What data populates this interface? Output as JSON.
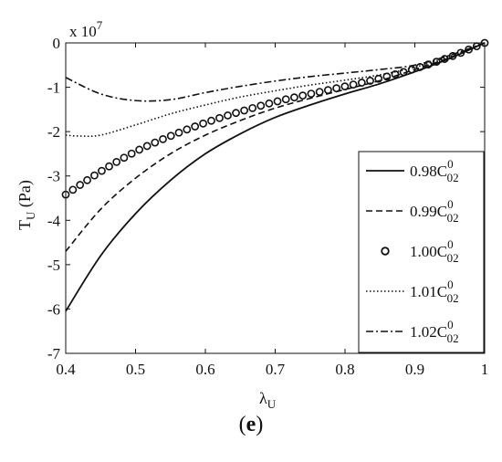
{
  "caption": {
    "open": "(",
    "letter": "e",
    "close": ")"
  },
  "chart_data": {
    "type": "line",
    "xlabel": {
      "main": "λ",
      "sub": "U"
    },
    "ylabel": {
      "main": "T",
      "sub": "U",
      "unit": " (Pa)"
    },
    "y_multiplier": {
      "base": "x 10",
      "exp": "7"
    },
    "xlim": [
      0.4,
      1.0
    ],
    "ylim": [
      -7,
      0
    ],
    "xticks": [
      "0.4",
      "0.5",
      "0.6",
      "0.7",
      "0.8",
      "0.9",
      "1"
    ],
    "yticks": [
      "0",
      "-1",
      "-2",
      "-3",
      "-4",
      "-5",
      "-6",
      "-7"
    ],
    "grid": false,
    "legend_position": "right",
    "series": [
      {
        "label": {
          "coef": "0.98C",
          "sup": "0",
          "sub": "02"
        },
        "style": "solid",
        "x": [
          0.4,
          0.45,
          0.5,
          0.55,
          0.6,
          0.65,
          0.7,
          0.75,
          0.8,
          0.85,
          0.9,
          0.95,
          1.0
        ],
        "y": [
          -6.05,
          -4.8,
          -3.85,
          -3.1,
          -2.5,
          -2.05,
          -1.68,
          -1.4,
          -1.15,
          -0.92,
          -0.65,
          -0.35,
          0.0
        ]
      },
      {
        "label": {
          "coef": "0.99C",
          "sup": "0",
          "sub": "02"
        },
        "style": "dashed",
        "x": [
          0.4,
          0.45,
          0.5,
          0.55,
          0.6,
          0.65,
          0.7,
          0.75,
          0.8,
          0.85,
          0.9,
          0.95,
          1.0
        ],
        "y": [
          -4.7,
          -3.75,
          -3.05,
          -2.5,
          -2.08,
          -1.75,
          -1.47,
          -1.25,
          -1.05,
          -0.85,
          -0.6,
          -0.33,
          0.0
        ]
      },
      {
        "label": {
          "coef": "1.00C",
          "sup": "0",
          "sub": "02"
        },
        "style": "circles",
        "x": [
          0.4,
          0.45,
          0.5,
          0.55,
          0.6,
          0.65,
          0.7,
          0.75,
          0.8,
          0.85,
          0.9,
          0.95,
          1.0
        ],
        "y": [
          -3.42,
          -2.9,
          -2.45,
          -2.1,
          -1.8,
          -1.55,
          -1.33,
          -1.15,
          -0.98,
          -0.8,
          -0.58,
          -0.32,
          0.0
        ]
      },
      {
        "label": {
          "coef": "1.01C",
          "sup": "0",
          "sub": "02"
        },
        "style": "dotted",
        "x": [
          0.4,
          0.42,
          0.45,
          0.5,
          0.55,
          0.6,
          0.65,
          0.7,
          0.75,
          0.8,
          0.85,
          0.9,
          0.95,
          1.0
        ],
        "y": [
          -2.08,
          -2.1,
          -2.08,
          -1.85,
          -1.6,
          -1.4,
          -1.22,
          -1.08,
          -0.95,
          -0.84,
          -0.72,
          -0.55,
          -0.3,
          0.0
        ]
      },
      {
        "label": {
          "coef": "1.02C",
          "sup": "0",
          "sub": "02"
        },
        "style": "dashdot",
        "x": [
          0.4,
          0.45,
          0.5,
          0.55,
          0.6,
          0.65,
          0.7,
          0.75,
          0.8,
          0.85,
          0.9,
          0.95,
          1.0
        ],
        "y": [
          -0.78,
          -1.15,
          -1.3,
          -1.28,
          -1.12,
          -0.98,
          -0.86,
          -0.76,
          -0.68,
          -0.6,
          -0.5,
          -0.28,
          0.0
        ]
      }
    ]
  }
}
